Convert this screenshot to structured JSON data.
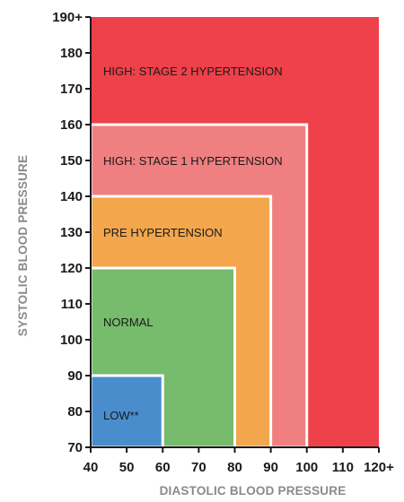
{
  "chart_data": {
    "type": "area",
    "xlabel": "DIASTOLIC BLOOD PRESSURE",
    "ylabel": "SYSTOLIC BLOOD PRESSURE",
    "xlim": [
      40,
      120
    ],
    "ylim": [
      70,
      190
    ],
    "x_ticks": [
      {
        "value": 40,
        "label": "40"
      },
      {
        "value": 50,
        "label": "50"
      },
      {
        "value": 60,
        "label": "60"
      },
      {
        "value": 70,
        "label": "70"
      },
      {
        "value": 80,
        "label": "80"
      },
      {
        "value": 90,
        "label": "90"
      },
      {
        "value": 100,
        "label": "100"
      },
      {
        "value": 110,
        "label": "110"
      },
      {
        "value": 120,
        "label": "120+"
      }
    ],
    "y_ticks": [
      {
        "value": 70,
        "label": "70"
      },
      {
        "value": 80,
        "label": "80"
      },
      {
        "value": 90,
        "label": "90"
      },
      {
        "value": 100,
        "label": "100"
      },
      {
        "value": 110,
        "label": "110"
      },
      {
        "value": 120,
        "label": "120"
      },
      {
        "value": 130,
        "label": "130"
      },
      {
        "value": 140,
        "label": "140"
      },
      {
        "value": 150,
        "label": "150"
      },
      {
        "value": 160,
        "label": "160"
      },
      {
        "value": 170,
        "label": "170"
      },
      {
        "value": 180,
        "label": "180"
      },
      {
        "value": 190,
        "label": "190+"
      }
    ],
    "zones": [
      {
        "label": "HIGH: STAGE 2 HYPERTENSION",
        "x_max": 120,
        "y_max": 190,
        "label_y": 175,
        "color": "#ee4149"
      },
      {
        "label": "HIGH: STAGE 1 HYPERTENSION",
        "x_max": 100,
        "y_max": 160,
        "label_y": 150,
        "color": "#f07f81"
      },
      {
        "label": "PRE HYPERTENSION",
        "x_max": 90,
        "y_max": 140,
        "label_y": 130,
        "color": "#f3a64c"
      },
      {
        "label": "NORMAL",
        "x_max": 80,
        "y_max": 120,
        "label_y": 105,
        "color": "#77bb6c"
      },
      {
        "label": "LOW**",
        "x_max": 60,
        "y_max": 90,
        "label_y": 79,
        "color": "#4a8dcd"
      }
    ]
  }
}
